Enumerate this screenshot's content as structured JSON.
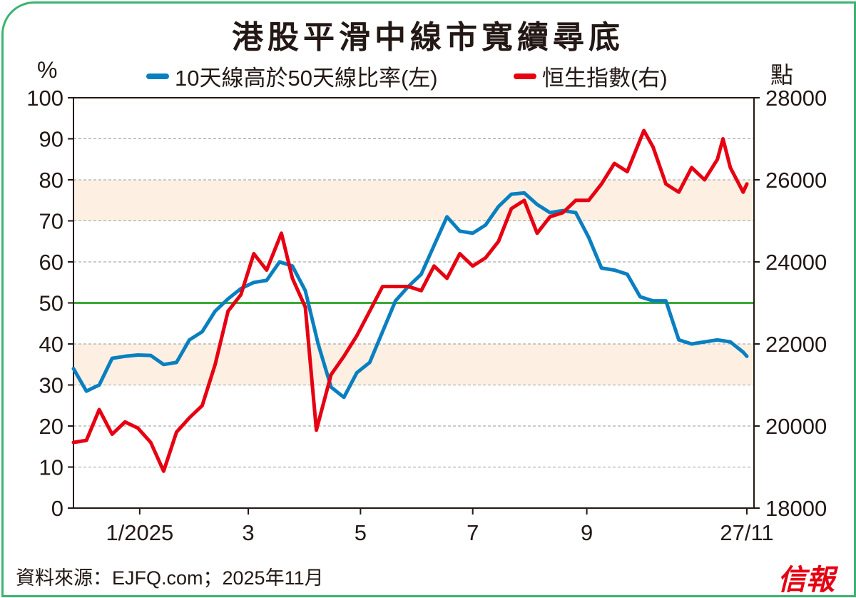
{
  "title": "港股平滑中線市寬續尋底",
  "source": "資料來源：EJFQ.com；2025年11月",
  "logo_text": "信報",
  "chart_data": {
    "type": "line",
    "title": "港股平滑中線市寬續尋底",
    "y_left_label": "%",
    "y_right_label": "點",
    "y_left_range": [
      0,
      100
    ],
    "y_right_range": [
      18000,
      28000
    ],
    "y_left_ticks": [
      "0",
      "10",
      "20",
      "30",
      "40",
      "50",
      "60",
      "70",
      "80",
      "90",
      "100"
    ],
    "y_right_ticks": [
      "18000",
      "20000",
      "22000",
      "24000",
      "26000",
      "28000"
    ],
    "x_range": [
      "2024-11-26",
      "2025-11-27"
    ],
    "x_ticks": [
      {
        "date": "2025-01-01",
        "label": "1/2025"
      },
      {
        "date": "2025-03-01",
        "label": "3"
      },
      {
        "date": "2025-05-01",
        "label": "5"
      },
      {
        "date": "2025-07-01",
        "label": "7"
      },
      {
        "date": "2025-09-01",
        "label": "9"
      },
      {
        "date": "2025-11-27",
        "label": "27/11"
      }
    ],
    "grid": "horizontal dashed",
    "shaded_bands": [
      [
        30,
        40
      ],
      [
        70,
        80
      ]
    ],
    "reference_line": 50,
    "colors": {
      "blue": "#0a7fc0",
      "red": "#e60012",
      "reference": "#3aaa35",
      "band": "#fdf0e3",
      "frame": "#3cb371"
    },
    "legend_placement": "top",
    "series": [
      {
        "name": "10天線高於50天線比率(左)",
        "axis": "left",
        "color": "#0a7fc0",
        "points": [
          [
            "2024-11-26",
            34
          ],
          [
            "2024-12-03",
            28.5
          ],
          [
            "2024-12-10",
            30
          ],
          [
            "2024-12-17",
            36.5
          ],
          [
            "2024-12-24",
            37
          ],
          [
            "2024-12-31",
            37.3
          ],
          [
            "2025-01-07",
            37.2
          ],
          [
            "2025-01-14",
            35
          ],
          [
            "2025-01-21",
            35.5
          ],
          [
            "2025-01-28",
            41
          ],
          [
            "2025-02-04",
            43
          ],
          [
            "2025-02-11",
            48
          ],
          [
            "2025-02-18",
            51
          ],
          [
            "2025-02-25",
            53.5
          ],
          [
            "2025-03-04",
            55
          ],
          [
            "2025-03-11",
            55.5
          ],
          [
            "2025-03-18",
            60
          ],
          [
            "2025-03-25",
            59
          ],
          [
            "2025-04-01",
            53
          ],
          [
            "2025-04-08",
            40
          ],
          [
            "2025-04-15",
            29.5
          ],
          [
            "2025-04-22",
            27
          ],
          [
            "2025-04-29",
            33
          ],
          [
            "2025-05-06",
            35.5
          ],
          [
            "2025-05-13",
            43
          ],
          [
            "2025-05-20",
            50.5
          ],
          [
            "2025-05-27",
            54
          ],
          [
            "2025-06-03",
            57
          ],
          [
            "2025-06-10",
            64
          ],
          [
            "2025-06-17",
            71
          ],
          [
            "2025-06-24",
            67.5
          ],
          [
            "2025-07-01",
            67
          ],
          [
            "2025-07-08",
            69
          ],
          [
            "2025-07-15",
            73.5
          ],
          [
            "2025-07-22",
            76.5
          ],
          [
            "2025-07-29",
            76.8
          ],
          [
            "2025-08-05",
            74
          ],
          [
            "2025-08-12",
            72
          ],
          [
            "2025-08-19",
            72.5
          ],
          [
            "2025-08-26",
            72
          ],
          [
            "2025-09-02",
            66
          ],
          [
            "2025-09-09",
            58.5
          ],
          [
            "2025-09-16",
            58
          ],
          [
            "2025-09-23",
            57
          ],
          [
            "2025-09-30",
            51.5
          ],
          [
            "2025-10-07",
            50.5
          ],
          [
            "2025-10-14",
            50.5
          ],
          [
            "2025-10-21",
            41
          ],
          [
            "2025-10-28",
            40
          ],
          [
            "2025-11-04",
            40.5
          ],
          [
            "2025-11-11",
            41
          ],
          [
            "2025-11-18",
            40.5
          ],
          [
            "2025-11-25",
            38
          ],
          [
            "2025-11-27",
            37
          ]
        ]
      },
      {
        "name": "恒生指數(右)",
        "axis": "right",
        "color": "#e60012",
        "points": [
          [
            "2024-11-26",
            19600
          ],
          [
            "2024-12-03",
            19650
          ],
          [
            "2024-12-10",
            20400
          ],
          [
            "2024-12-17",
            19800
          ],
          [
            "2024-12-24",
            20100
          ],
          [
            "2024-12-31",
            19950
          ],
          [
            "2025-01-07",
            19600
          ],
          [
            "2025-01-14",
            18900
          ],
          [
            "2025-01-21",
            19850
          ],
          [
            "2025-01-28",
            20200
          ],
          [
            "2025-02-04",
            20500
          ],
          [
            "2025-02-11",
            21500
          ],
          [
            "2025-02-18",
            22800
          ],
          [
            "2025-02-25",
            23200
          ],
          [
            "2025-03-04",
            24200
          ],
          [
            "2025-03-11",
            23800
          ],
          [
            "2025-03-19",
            24700
          ],
          [
            "2025-03-25",
            23600
          ],
          [
            "2025-04-01",
            22900
          ],
          [
            "2025-04-07",
            19900
          ],
          [
            "2025-04-15",
            21250
          ],
          [
            "2025-04-22",
            21700
          ],
          [
            "2025-04-29",
            22200
          ],
          [
            "2025-05-06",
            22800
          ],
          [
            "2025-05-13",
            23400
          ],
          [
            "2025-05-20",
            23400
          ],
          [
            "2025-05-27",
            23400
          ],
          [
            "2025-06-03",
            23300
          ],
          [
            "2025-06-10",
            23900
          ],
          [
            "2025-06-17",
            23600
          ],
          [
            "2025-06-24",
            24200
          ],
          [
            "2025-07-01",
            23900
          ],
          [
            "2025-07-08",
            24100
          ],
          [
            "2025-07-15",
            24500
          ],
          [
            "2025-07-22",
            25300
          ],
          [
            "2025-07-29",
            25500
          ],
          [
            "2025-08-05",
            24700
          ],
          [
            "2025-08-12",
            25100
          ],
          [
            "2025-08-19",
            25200
          ],
          [
            "2025-08-26",
            25500
          ],
          [
            "2025-09-02",
            25500
          ],
          [
            "2025-09-09",
            25900
          ],
          [
            "2025-09-16",
            26400
          ],
          [
            "2025-09-23",
            26200
          ],
          [
            "2025-10-02",
            27200
          ],
          [
            "2025-10-07",
            26800
          ],
          [
            "2025-10-14",
            25900
          ],
          [
            "2025-10-21",
            25700
          ],
          [
            "2025-10-28",
            26300
          ],
          [
            "2025-11-04",
            26000
          ],
          [
            "2025-11-11",
            26500
          ],
          [
            "2025-11-14",
            27000
          ],
          [
            "2025-11-18",
            26300
          ],
          [
            "2025-11-25",
            25700
          ],
          [
            "2025-11-27",
            25900
          ]
        ]
      }
    ]
  }
}
